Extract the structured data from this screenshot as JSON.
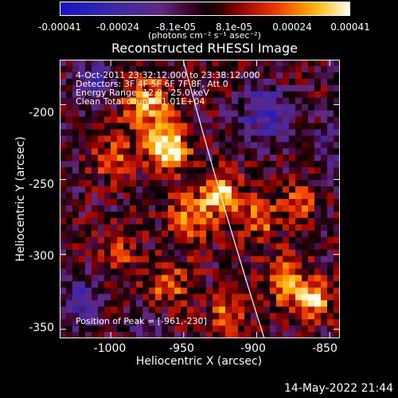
{
  "colorbar": {
    "ticks": [
      "-0.00041",
      "-0.00024",
      "-8.1e-05",
      "8.1e-05",
      "0.00024",
      "0.00041"
    ],
    "units_text": "(photons cm⁻² s⁻¹ asec⁻²)"
  },
  "chart_data": {
    "type": "heatmap",
    "title": "Reconstructed RHESSI Image",
    "xlabel": "Heliocentric X (arcsec)",
    "ylabel": "Heliocentric Y (arcsec)",
    "xlim": [
      -1035,
      -843
    ],
    "ylim": [
      -356,
      -170
    ],
    "xticks": [
      "-1000",
      "-950",
      "-900",
      "-850"
    ],
    "yticks": [
      "-200",
      "-250",
      "-300",
      "-350"
    ],
    "colorbar_range": [
      -0.00041,
      0.00041
    ],
    "peak_position": [
      -961,
      -230
    ],
    "limb_line": "white solar limb arc crossing from top near x=-945 to bottom near x=-890",
    "annotations": [
      "4-Oct-2011 23:32:12.000 to 23:38:12.000",
      "Detectors: 3F 4F 5F 6F 7F 8F, Att 0",
      "Energy Range: 12.0 - 25.0 keV",
      "Clean     Total counts: 1.01E+04"
    ],
    "peak_text": "Position of Peak = [-961,-230]"
  },
  "footer": {
    "timestamp": "14-May-2022 21:44"
  }
}
